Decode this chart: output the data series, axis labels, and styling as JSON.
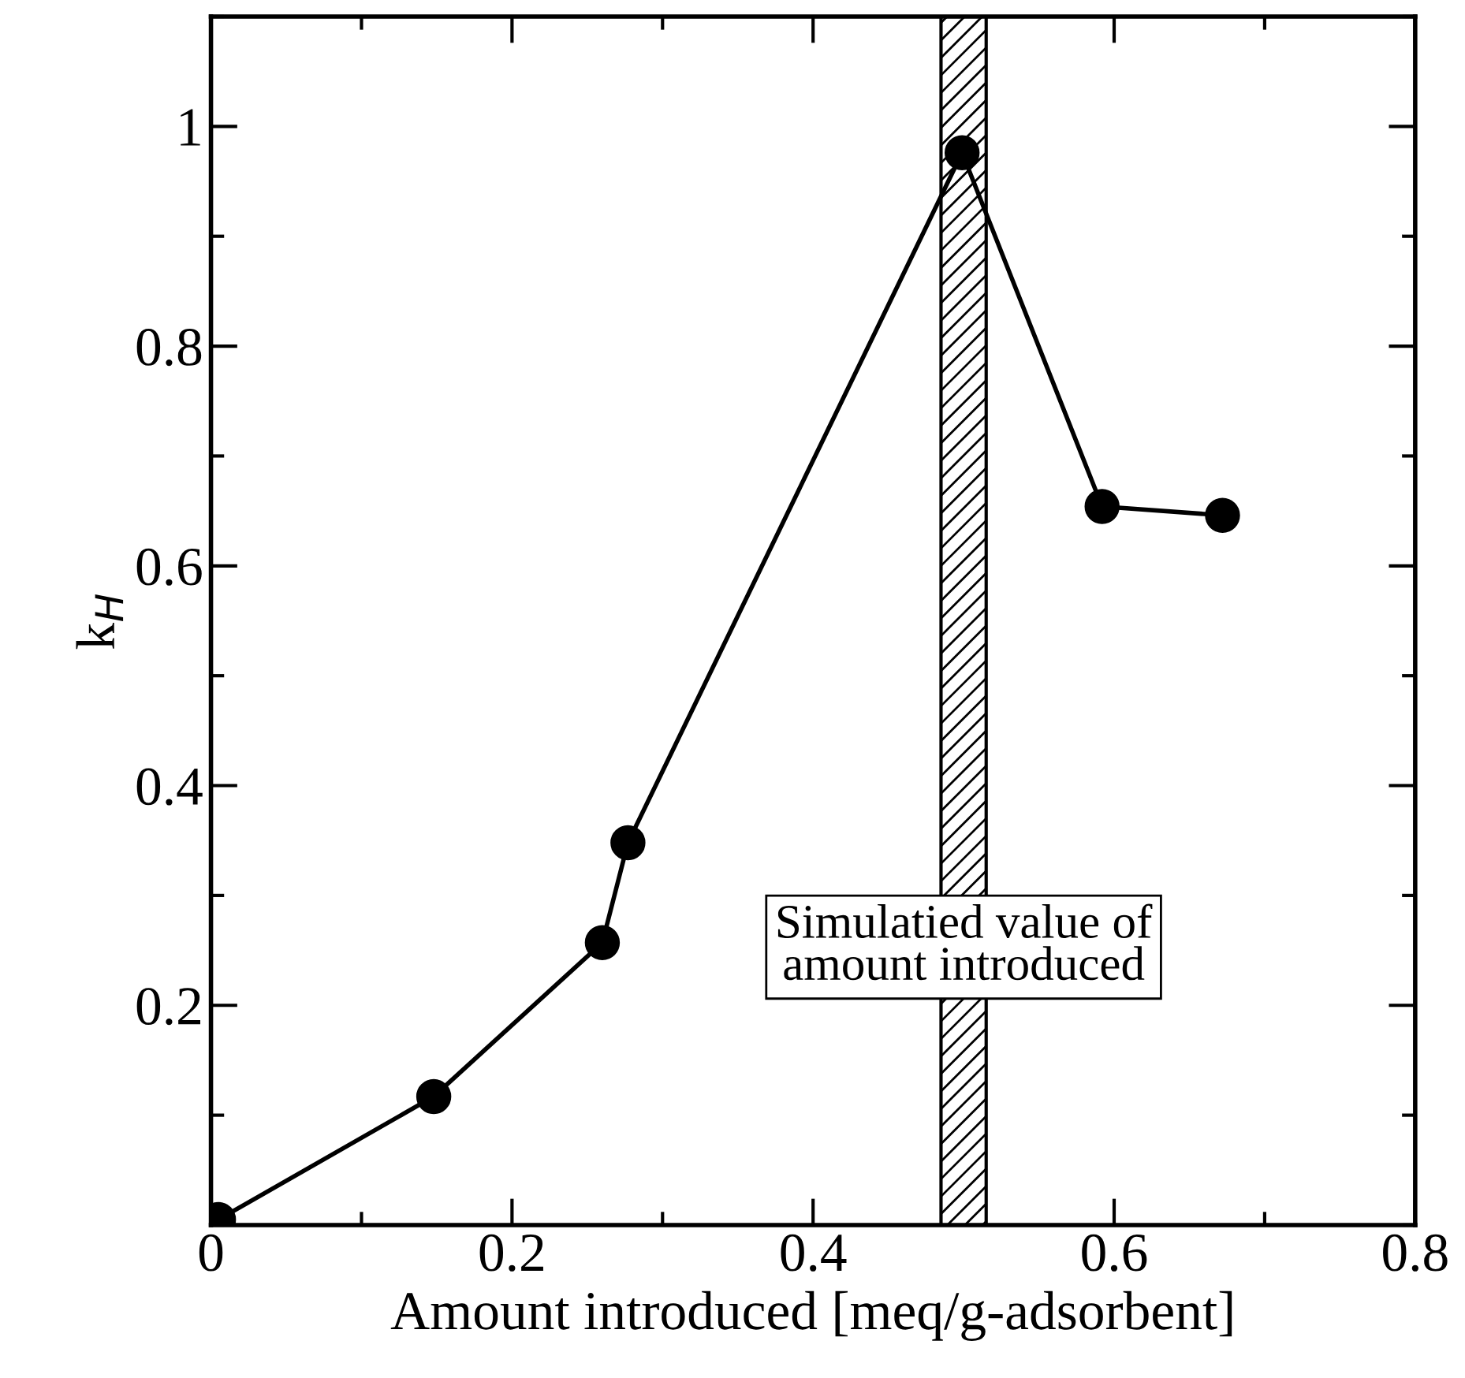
{
  "chart_data": {
    "type": "line",
    "xlabel": "Amount introduced [meq/g-adsorbent]",
    "ylabel": "k$_{H}$",
    "x": [
      0.005,
      0.148,
      0.26,
      0.277,
      0.499,
      0.592,
      0.672
    ],
    "series": [
      {
        "color": "#000000",
        "values": [
          0.005,
          0.117,
          0.257,
          0.348,
          0.976,
          0.654,
          0.646
        ]
      }
    ],
    "marker": "circle",
    "line_style": "solid",
    "xlim": [
      0,
      0.8
    ],
    "xticks": [
      0,
      0.2,
      0.4,
      0.6,
      0.8
    ],
    "ylim": [
      0,
      1.1
    ],
    "yticks": [
      0.2,
      0.4,
      0.6,
      0.8,
      1
    ],
    "bands": [
      {
        "axis": "x",
        "from": 0.485,
        "to": 0.515,
        "label": "Simulatied value of\namount introduced",
        "color": "#000000"
      }
    ],
    "grid": false,
    "legend": false
  }
}
